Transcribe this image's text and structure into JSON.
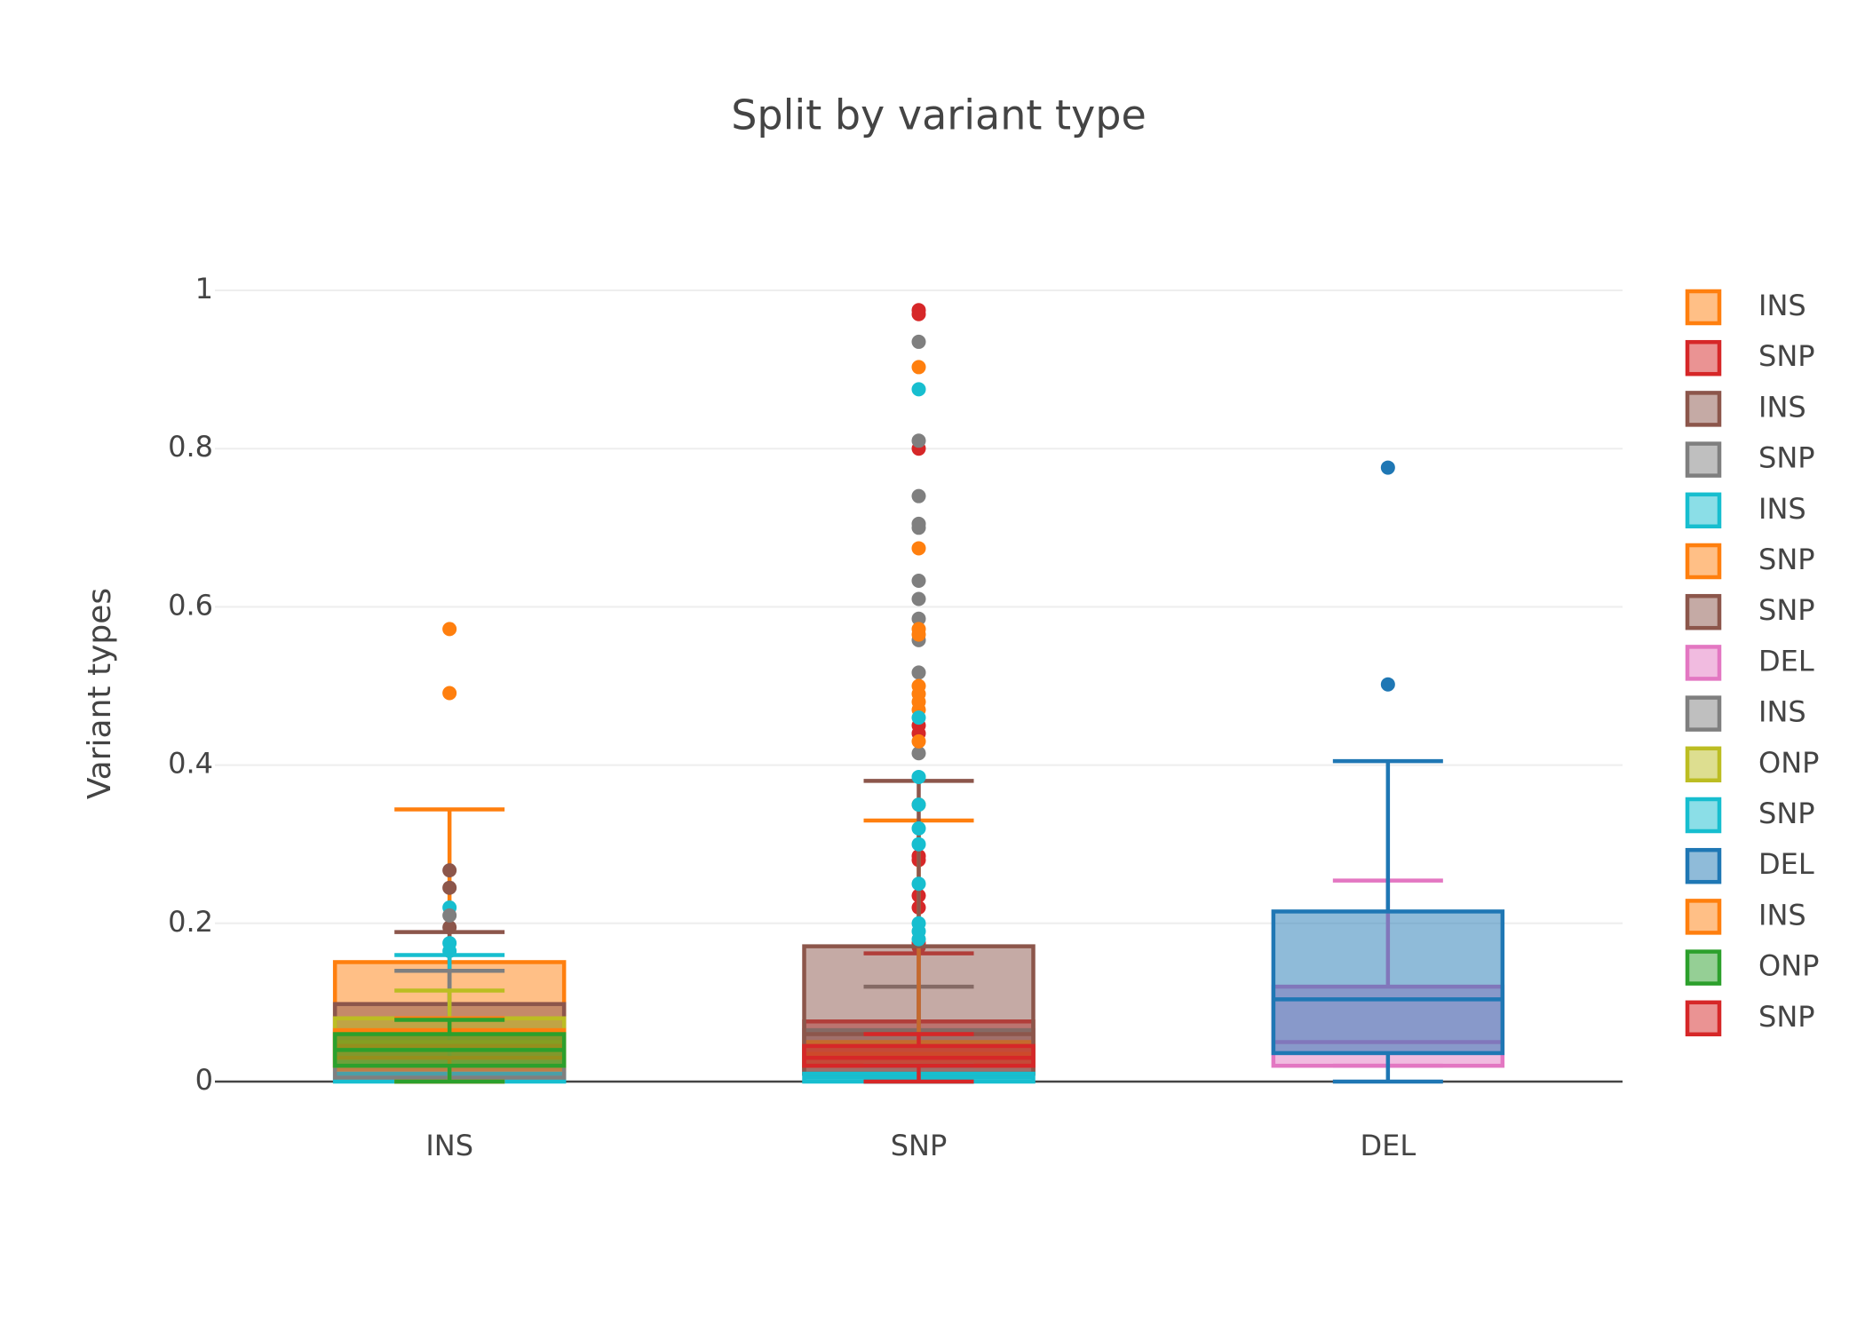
{
  "chart_data": {
    "type": "box",
    "title": "Split by variant type",
    "y_label": "Variant types",
    "categories": [
      "INS",
      "SNP",
      "DEL"
    ],
    "ylim": [
      0,
      1
    ],
    "yticks": [
      0,
      0.2,
      0.4,
      0.6,
      0.8,
      1
    ],
    "grid": true,
    "legend": "right",
    "series": [
      {
        "name": "INS",
        "color": "#ff7f0e",
        "x": "INS",
        "values": [
          0,
          0.015,
          0.06,
          0.151,
          0.344
        ],
        "outliers": [
          0.572,
          0.491
        ]
      },
      {
        "name": "SNP",
        "color": "#d62728",
        "x": "SNP",
        "values": [
          0,
          0.01,
          0.045,
          0.076,
          0.162
        ],
        "outliers": [
          0.975,
          0.97,
          0.8,
          0.45,
          0.44,
          0.285,
          0.28,
          0.235,
          0.22,
          0.175,
          0.17
        ]
      },
      {
        "name": "INS",
        "color": "#8c564b",
        "x": "INS",
        "values": [
          0,
          0.02,
          0.05,
          0.098,
          0.189
        ],
        "outliers": [
          0.267,
          0.245,
          0.195
        ]
      },
      {
        "name": "SNP",
        "color": "#7f7f7f",
        "x": "SNP",
        "values": [
          0,
          0.01,
          0.03,
          0.065,
          0.12
        ],
        "outliers": [
          0.935,
          0.81,
          0.74,
          0.705,
          0.7,
          0.633,
          0.61,
          0.585,
          0.558,
          0.517,
          0.415
        ]
      },
      {
        "name": "INS",
        "color": "#17becf",
        "x": "INS",
        "values": [
          0,
          0,
          0.005,
          0.01,
          0.16
        ],
        "outliers": [
          0.22,
          0.175,
          0.165
        ]
      },
      {
        "name": "SNP",
        "color": "#ff7f0e",
        "x": "SNP",
        "values": [
          0,
          0.02,
          0.035,
          0.05,
          0.33
        ],
        "outliers": [
          0.903,
          0.674,
          0.572,
          0.565,
          0.5,
          0.49,
          0.48,
          0.47,
          0.43,
          0.35
        ]
      },
      {
        "name": "SNP",
        "color": "#8c564b",
        "x": "SNP",
        "values": [
          0,
          0.01,
          0.06,
          0.171,
          0.38
        ],
        "outliers": []
      },
      {
        "name": "DEL",
        "color": "#e377c2",
        "x": "DEL",
        "values": [
          0.02,
          0.02,
          0.05,
          0.12,
          0.254
        ],
        "outliers": []
      },
      {
        "name": "INS",
        "color": "#7f7f7f",
        "x": "INS",
        "values": [
          0,
          0.005,
          0.03,
          0.06,
          0.14
        ],
        "outliers": [
          0.21
        ]
      },
      {
        "name": "ONP",
        "color": "#bcbd22",
        "x": "INS",
        "values": [
          0,
          0.02,
          0.05,
          0.08,
          0.115
        ],
        "outliers": []
      },
      {
        "name": "SNP",
        "color": "#17becf",
        "x": "SNP",
        "values": [
          0,
          0,
          0.005,
          0.01,
          0.02
        ],
        "outliers": [
          0.875,
          0.46,
          0.385,
          0.35,
          0.32,
          0.3,
          0.25,
          0.2,
          0.19,
          0.18
        ]
      },
      {
        "name": "DEL",
        "color": "#1f77b4",
        "x": "DEL",
        "values": [
          0,
          0.036,
          0.104,
          0.215,
          0.405
        ],
        "outliers": [
          0.776,
          0.502
        ]
      },
      {
        "name": "INS",
        "color": "#ff7f0e",
        "x": "INS",
        "values": [
          0,
          0.03,
          0.045,
          0.065,
          0.08
        ],
        "outliers": []
      },
      {
        "name": "ONP",
        "color": "#2ca02c",
        "x": "INS",
        "values": [
          0,
          0.02,
          0.04,
          0.06,
          0.078
        ],
        "outliers": []
      },
      {
        "name": "SNP",
        "color": "#d62728",
        "x": "SNP",
        "values": [
          0,
          0.02,
          0.03,
          0.045,
          0.06
        ],
        "outliers": []
      }
    ]
  }
}
